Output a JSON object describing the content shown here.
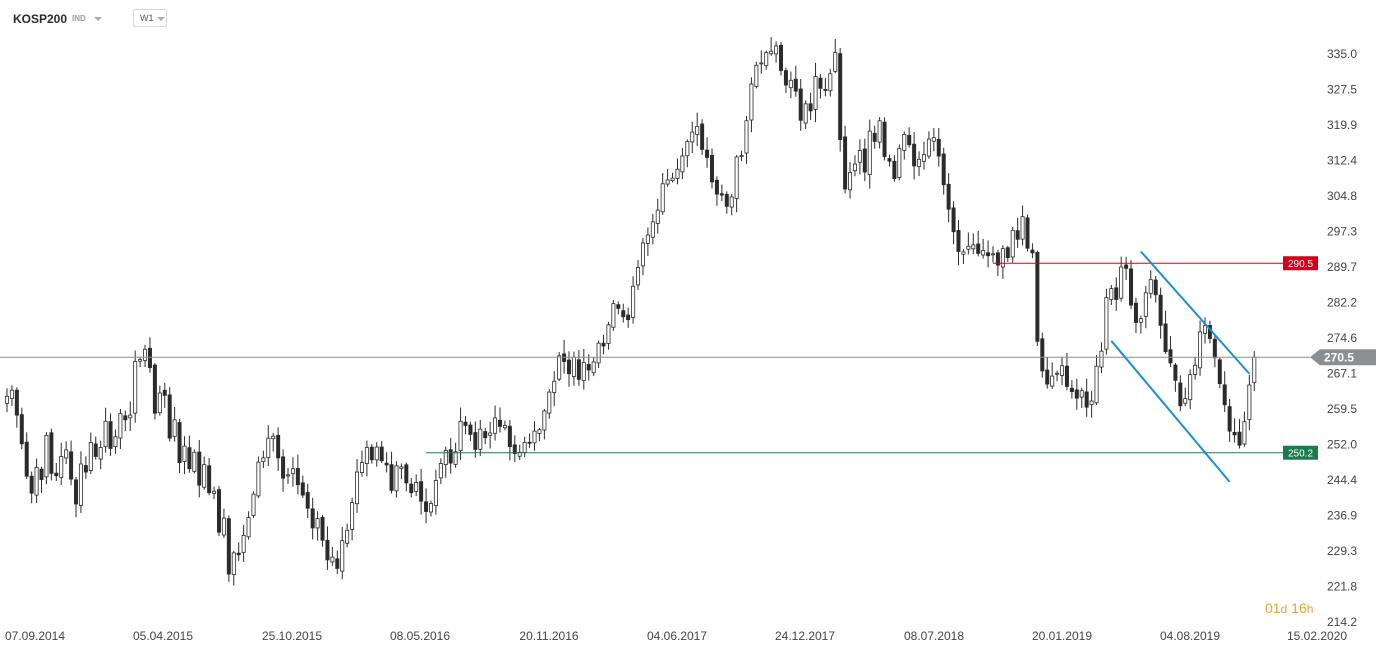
{
  "header": {
    "symbol": "KOSP200",
    "instrument_type": "IND",
    "timeframe": "W1"
  },
  "countdown": {
    "d_value": "01",
    "d_unit": "d",
    "h_value": "16",
    "h_unit": "h"
  },
  "colors": {
    "up_body": "#ffffff",
    "down_body": "#2b2b2b",
    "wick": "#2b2b2b",
    "resistance": "#d0021b",
    "support": "#1b7d4f",
    "channel": "#1b8fd1",
    "current_price": "#8a8f94"
  },
  "chart_data": {
    "type": "candlestick",
    "symbol": "KOSP200",
    "timeframe": "W1",
    "x_tick_labels": [
      "07.09.2014",
      "05.04.2015",
      "25.10.2015",
      "08.05.2016",
      "20.11.2016",
      "04.06.2017",
      "24.12.2017",
      "08.07.2018",
      "20.01.2019",
      "04.08.2019",
      "15.02.2020"
    ],
    "y_tick_labels": [
      "335.0",
      "327.5",
      "319.9",
      "312.4",
      "304.8",
      "297.3",
      "289.7",
      "282.2",
      "274.6",
      "267.1",
      "259.5",
      "252.0",
      "244.4",
      "236.9",
      "229.3",
      "221.8",
      "214.2"
    ],
    "ylim": [
      214.2,
      335.0
    ],
    "grid": false,
    "current_price": 270.5,
    "horizontal_levels": [
      {
        "label": "290.5",
        "value": 290.5,
        "color": "resistance",
        "from_week": 200
      },
      {
        "label": "250.2",
        "value": 250.2,
        "color": "support",
        "from_week": 85
      }
    ],
    "channel_lines": [
      {
        "from": {
          "week": 230,
          "price": 293.0
        },
        "to": {
          "week": 252,
          "price": 267.0
        }
      },
      {
        "from": {
          "week": 224,
          "price": 274.0
        },
        "to": {
          "week": 248,
          "price": 244.0
        }
      }
    ],
    "weekly_closes": [
      262.2,
      263.5,
      258.2,
      252.1,
      245.2,
      241.6,
      247.1,
      244.5,
      253.9,
      245.8,
      245.3,
      249.4,
      250.8,
      244.6,
      239.3,
      247.8,
      246.1,
      252.4,
      249.4,
      251.3,
      256.9,
      251.1,
      253.6,
      258.5,
      257.2,
      258.2,
      269.6,
      270.0,
      272.2,
      268.3,
      258.6,
      262.9,
      262.4,
      253.3,
      257.2,
      248.1,
      251.6,
      246.8,
      250.3,
      243.3,
      247.7,
      241.7,
      242.0,
      233.3,
      236.3,
      224.4,
      228.9,
      228.5,
      232.6,
      236.4,
      241.4,
      248.2,
      249.1,
      253.3,
      253.7,
      249.1,
      244.8,
      245.5,
      246.8,
      243.4,
      241.2,
      238.4,
      234.2,
      236.2,
      231.6,
      227.4,
      228.0,
      225.6,
      231.5,
      233.7,
      239.6,
      246.1,
      248.1,
      251.3,
      248.7,
      251.4,
      248.5,
      247.6,
      242.2,
      247.4,
      247.2,
      243.8,
      241.7,
      243.9,
      239.9,
      237.7,
      239.4,
      244.3,
      247.9,
      250.7,
      248.0,
      250.4,
      256.9,
      256.0,
      254.1,
      250.9,
      255.2,
      253.4,
      254.4,
      257.6,
      255.8,
      256.0,
      251.5,
      250.0,
      250.3,
      252.4,
      252.2,
      254.8,
      255.1,
      259.1,
      263.1,
      265.4,
      270.8,
      269.6,
      267.0,
      270.5,
      265.8,
      269.4,
      267.8,
      269.5,
      273.5,
      272.9,
      277.4,
      281.9,
      280.9,
      279.1,
      278.5,
      285.6,
      289.6,
      294.8,
      296.5,
      299.3,
      301.8,
      307.4,
      308.2,
      308.6,
      310.5,
      313.3,
      316.4,
      318.4,
      319.6,
      314.7,
      313.0,
      307.8,
      305.2,
      305.0,
      302.6,
      304.6,
      313.1,
      313.4,
      320.8,
      328.6,
      332.6,
      333.1,
      335.3,
      335.6,
      336.7,
      331.5,
      328.4,
      329.4,
      327.1,
      320.9,
      324.4,
      322.9,
      330.2,
      327.7,
      327.3,
      330.8,
      335.3,
      316.8,
      306.3,
      309.8,
      311.6,
      314.5,
      309.9,
      318.6,
      316.4,
      320.8,
      313.2,
      312.2,
      308.5,
      314.9,
      317.9,
      315.7,
      311.2,
      312.6,
      313.6,
      316.9,
      317.2,
      313.3,
      307.2,
      302.0,
      297.2,
      293.0,
      292.9,
      294.1,
      294.4,
      292.6,
      293.2,
      292.1,
      292.5,
      290.1,
      293.6,
      291.7,
      297.5,
      295.6,
      300.4,
      293.7,
      292.7,
      273.9,
      267.6,
      264.8,
      266.5,
      267.1,
      268.7,
      264.3,
      263.2,
      261.8,
      263.4,
      259.9,
      261.2,
      268.6,
      271.8,
      283.2,
      285.1,
      282.8,
      289.7,
      289.4,
      281.6,
      277.9,
      278.7,
      284.2,
      287.0,
      283.8,
      277.3,
      271.7,
      269.3,
      265.6,
      260.2,
      261.7,
      266.8,
      268.8,
      275.9,
      277.2,
      274.5,
      270.4,
      264.9,
      260.4,
      254.8,
      254.0,
      251.8,
      256.8,
      264.6,
      270.5
    ]
  }
}
